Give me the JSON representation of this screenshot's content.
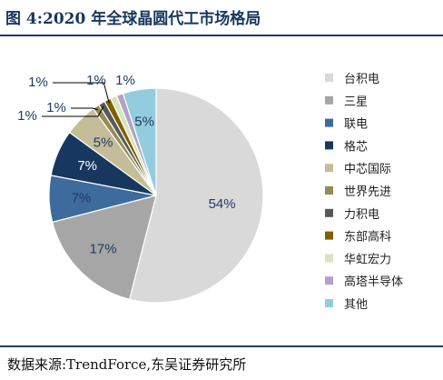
{
  "title": "图 4:2020 年全球晶圆代工市场格局",
  "source": "数据来源:TrendForce,东吴证券研究所",
  "chart_data": {
    "type": "pie",
    "title": "",
    "categories": [
      "台积电",
      "三星",
      "联电",
      "格芯",
      "中芯国际",
      "世界先进",
      "力积电",
      "东部高科",
      "华虹宏力",
      "高塔半导体",
      "其他"
    ],
    "values": [
      54,
      17,
      7,
      7,
      5,
      1,
      1,
      1,
      1,
      1,
      5
    ],
    "labels": [
      "54%",
      "17%",
      "7%",
      "7%",
      "5%",
      "1%",
      "1%",
      "1%",
      "1%",
      "1%",
      "5%"
    ],
    "colors": [
      "#d9d9d9",
      "#a6a6a6",
      "#3d6b9e",
      "#17375e",
      "#c4bd97",
      "#948a54",
      "#595959",
      "#7f5f00",
      "#d7e4bd",
      "#b3a2c7",
      "#93cddd"
    ],
    "legend_position": "right"
  }
}
